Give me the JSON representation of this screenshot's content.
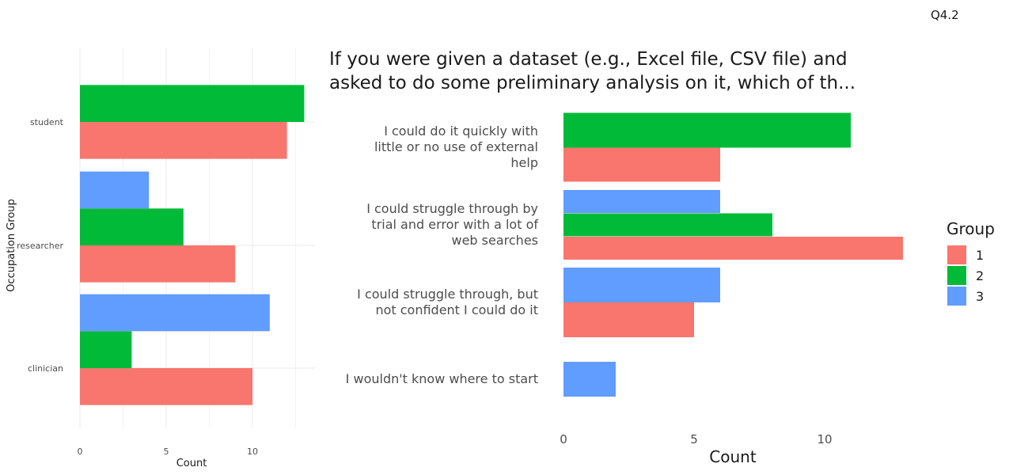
{
  "page_label": "Q4.2",
  "colors": {
    "1": "#F8766D",
    "2": "#00BA38",
    "3": "#619CFF",
    "grid": "#ebebeb"
  },
  "chart_data": [
    {
      "type": "bar",
      "orientation": "horizontal",
      "title": "",
      "xlabel": "Count",
      "ylabel": "Occupation Group",
      "xlim": [
        0,
        13.6
      ],
      "xticks": [
        "0",
        "5",
        "10"
      ],
      "categories": [
        "student",
        "researcher",
        "clinician"
      ],
      "series": [
        {
          "name": "1",
          "values": [
            12,
            9,
            10
          ]
        },
        {
          "name": "2",
          "values": [
            13,
            6,
            3
          ]
        },
        {
          "name": "3",
          "values": [
            null,
            4,
            11
          ]
        }
      ],
      "legend": "none",
      "grid": true
    },
    {
      "type": "bar",
      "orientation": "horizontal",
      "title_lines": [
        "If you were given a dataset (e.g., Excel file, CSV file) and",
        "asked to do some preliminary analysis on it, which of th..."
      ],
      "xlabel": "Count",
      "ylabel": "",
      "xlim": [
        0,
        13.6
      ],
      "xticks": [
        "0",
        "5",
        "10"
      ],
      "categories": [
        [
          "I could do it quickly with",
          "little or no use of external",
          "help"
        ],
        [
          "I could struggle through by",
          "trial and error with a lot of",
          "web searches"
        ],
        [
          "I could struggle through, but",
          "not confident I could do it"
        ],
        [
          "I wouldn't know where to start"
        ]
      ],
      "series": [
        {
          "name": "1",
          "values": [
            6,
            13,
            5,
            null
          ]
        },
        {
          "name": "2",
          "values": [
            11,
            8,
            null,
            null
          ]
        },
        {
          "name": "3",
          "values": [
            null,
            6,
            6,
            2
          ]
        }
      ],
      "legend": {
        "title": "Group",
        "position": "right",
        "entries": [
          "1",
          "2",
          "3"
        ]
      },
      "grid": false
    }
  ]
}
